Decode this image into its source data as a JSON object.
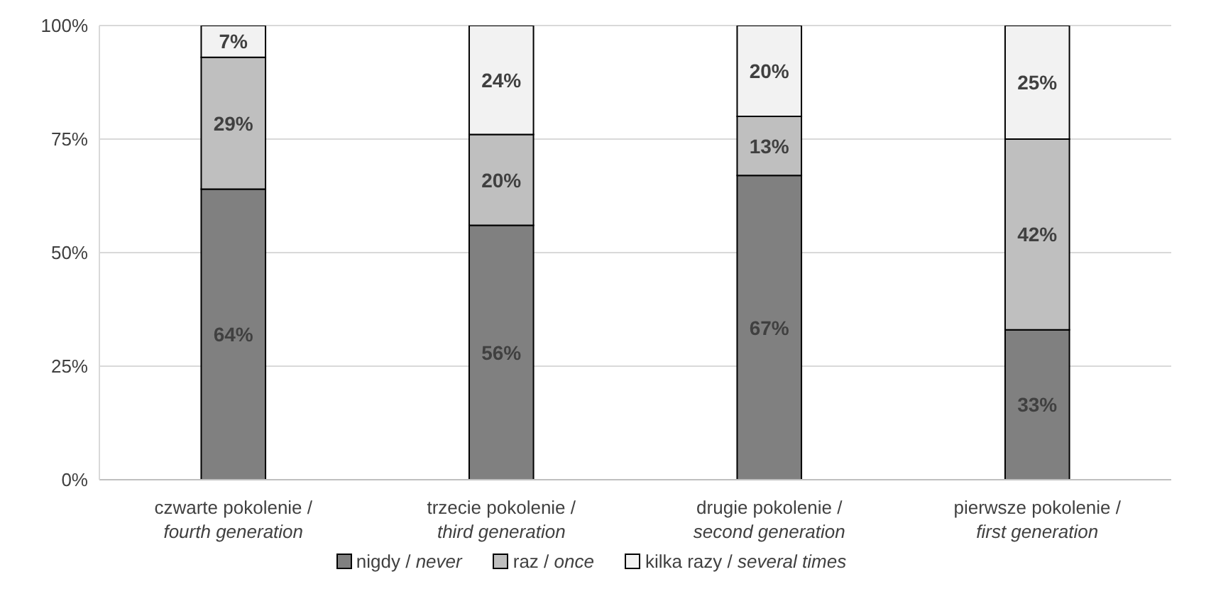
{
  "chart_data": {
    "type": "bar",
    "stacked": true,
    "categories": [
      "czwarte pokolenie / fourth generation",
      "trzecie pokolenie / third generation",
      "drugie pokolenie / second generation",
      "pierwsze pokolenie / first generation"
    ],
    "series": [
      {
        "name": "nigdy / never",
        "color": "#808080",
        "values": [
          64,
          56,
          67,
          33
        ],
        "value_labels": [
          "64%",
          "56%",
          "67%",
          "33%"
        ]
      },
      {
        "name": "raz / once",
        "color": "#bfbfbf",
        "values": [
          29,
          20,
          13,
          42
        ],
        "value_labels": [
          "29%",
          "20%",
          "13%",
          "42%"
        ]
      },
      {
        "name": "kilka razy / several times",
        "color": "#f2f2f2",
        "values": [
          7,
          24,
          20,
          25
        ],
        "value_labels": [
          "7%",
          "24%",
          "20%",
          "25%"
        ]
      }
    ],
    "ylim": [
      0,
      100
    ],
    "yticks": [
      {
        "value": 0,
        "label": "0%"
      },
      {
        "value": 25,
        "label": "25%"
      },
      {
        "value": 50,
        "label": "50%"
      },
      {
        "value": 75,
        "label": "75%"
      },
      {
        "value": 100,
        "label": "100%"
      }
    ],
    "grid": "y",
    "legend": "bottom"
  }
}
